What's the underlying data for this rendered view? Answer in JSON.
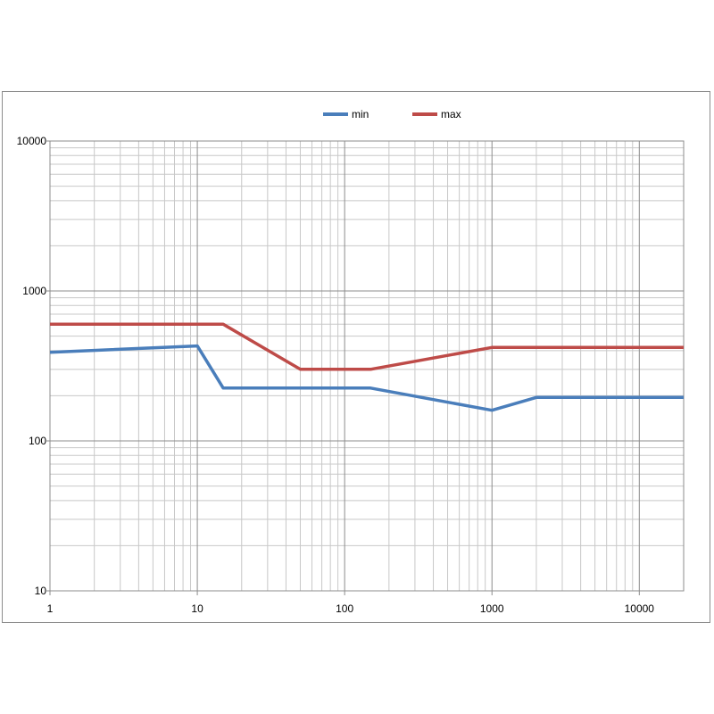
{
  "chart_data": {
    "type": "line",
    "title": "",
    "xlabel": "",
    "ylabel": "",
    "x_scale": "log",
    "y_scale": "log",
    "xlim": [
      1,
      20000
    ],
    "ylim": [
      10,
      10000
    ],
    "x_tick_labels": [
      "1",
      "10",
      "100",
      "1000",
      "10000"
    ],
    "y_tick_labels": [
      "10000",
      "1000",
      "100",
      "10"
    ],
    "grid": true,
    "legend": "top-center",
    "series": [
      {
        "name": "min",
        "color": "#4a7ebb",
        "points": [
          [
            1,
            390
          ],
          [
            10,
            430
          ],
          [
            15,
            225
          ],
          [
            150,
            225
          ],
          [
            1000,
            160
          ],
          [
            2000,
            195
          ],
          [
            20000,
            195
          ]
        ]
      },
      {
        "name": "max",
        "color": "#be4b48",
        "points": [
          [
            1,
            600
          ],
          [
            15,
            600
          ],
          [
            50,
            300
          ],
          [
            150,
            300
          ],
          [
            1000,
            420
          ],
          [
            20000,
            420
          ]
        ]
      }
    ]
  }
}
